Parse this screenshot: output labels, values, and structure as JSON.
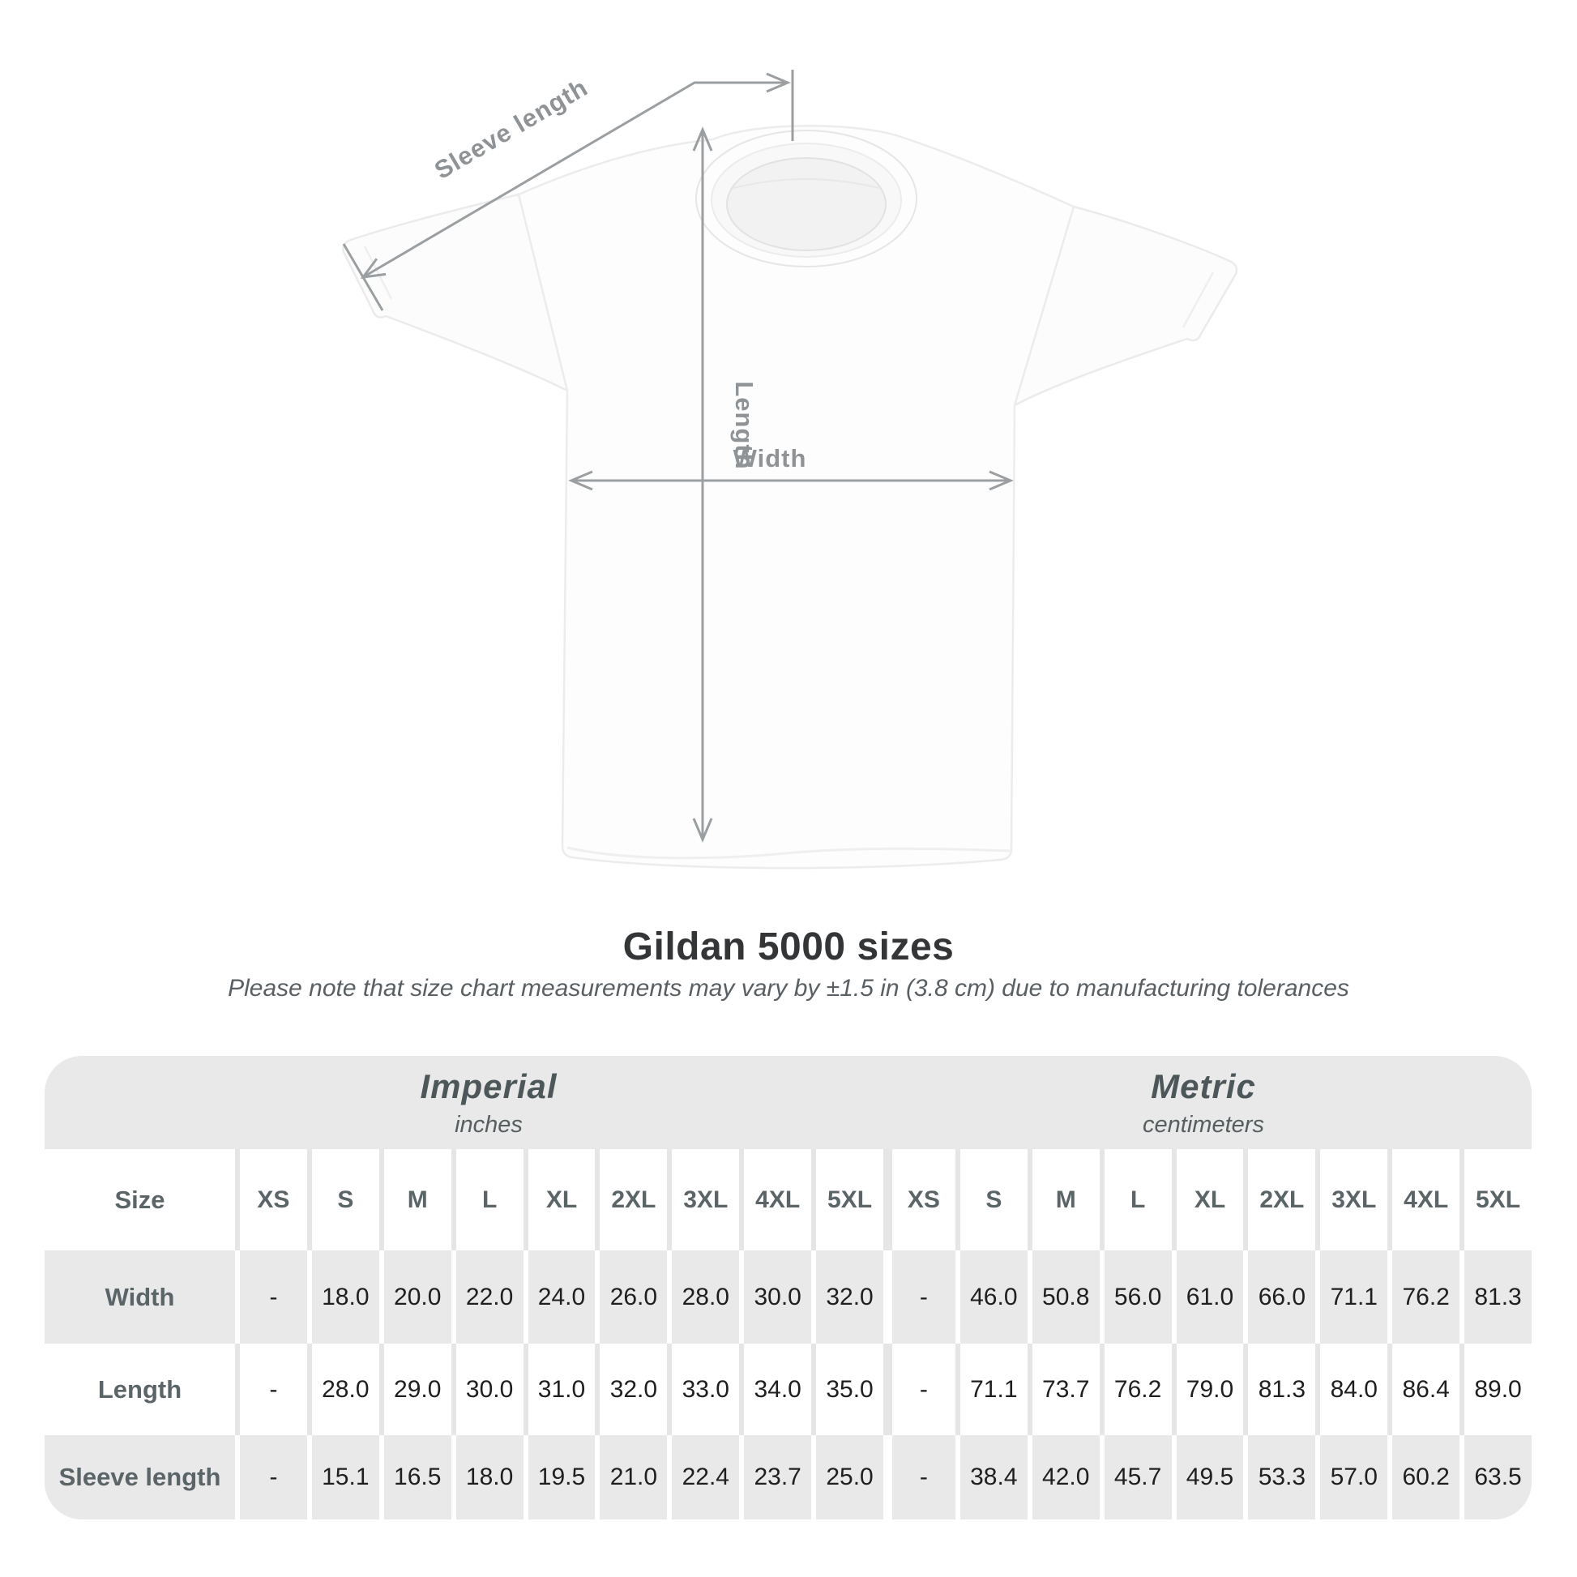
{
  "diagram": {
    "sleeve_length_label": "Sleeve length",
    "length_label": "Length",
    "width_label": "Width",
    "line_color": "#9b9fa1",
    "label_color": "#8f9396"
  },
  "heading": {
    "title": "Gildan 5000 sizes",
    "subtitle": "Please note that size chart measurements may vary by ±1.5 in (3.8 cm) due to manufacturing tolerances"
  },
  "table": {
    "size_header": "Size",
    "groups": [
      {
        "label": "Imperial",
        "unit": "inches"
      },
      {
        "label": "Metric",
        "unit": "centimeters"
      }
    ],
    "sizes": [
      "XS",
      "S",
      "M",
      "L",
      "XL",
      "2XL",
      "3XL",
      "4XL",
      "5XL"
    ],
    "rows": [
      {
        "label": "Width",
        "imperial": [
          "-",
          "18.0",
          "20.0",
          "22.0",
          "24.0",
          "26.0",
          "28.0",
          "30.0",
          "32.0"
        ],
        "metric": [
          "-",
          "46.0",
          "50.8",
          "56.0",
          "61.0",
          "66.0",
          "71.1",
          "76.2",
          "81.3"
        ]
      },
      {
        "label": "Length",
        "imperial": [
          "-",
          "28.0",
          "29.0",
          "30.0",
          "31.0",
          "32.0",
          "33.0",
          "34.0",
          "35.0"
        ],
        "metric": [
          "-",
          "71.1",
          "73.7",
          "76.2",
          "79.0",
          "81.3",
          "84.0",
          "86.4",
          "89.0"
        ]
      },
      {
        "label": "Sleeve length",
        "imperial": [
          "-",
          "15.1",
          "16.5",
          "18.0",
          "19.5",
          "21.0",
          "22.4",
          "23.7",
          "25.0"
        ],
        "metric": [
          "-",
          "38.4",
          "42.0",
          "45.7",
          "49.5",
          "53.3",
          "57.0",
          "60.2",
          "63.5"
        ]
      }
    ],
    "colors": {
      "band_gray": "#e9e9e9",
      "gutter_on_white": "#e5e5e5",
      "header_text": "#5b6467",
      "value_text": "#1f1f1f"
    }
  }
}
